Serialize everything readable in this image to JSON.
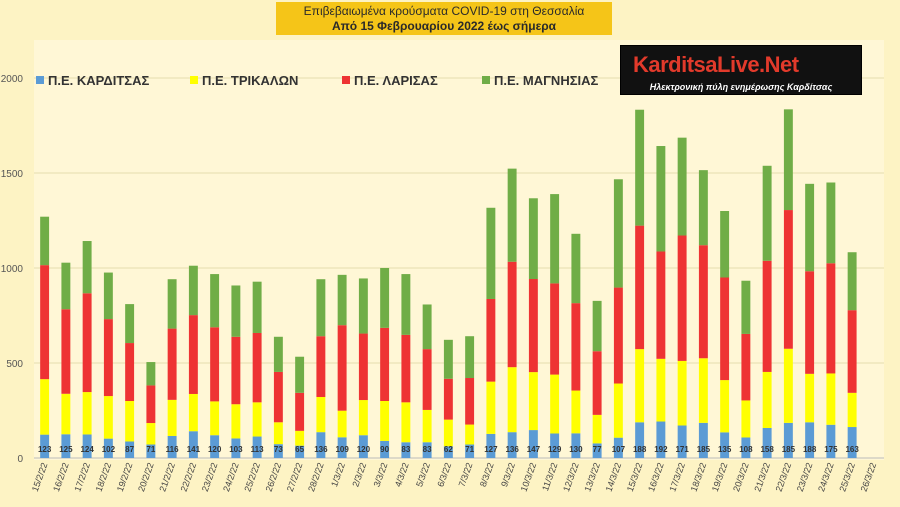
{
  "header": {
    "title": "Επιβεβαιωμένα κρούσματα COVID-19 στη Θεσσαλία",
    "subtitle": "Από 15 Φεβρουαρίου 2022 έως σήμερα"
  },
  "logo": {
    "name": "KarditsaLive.Net",
    "tagline": "Ηλεκτρονική πύλη ενημέρωσης Καρδίτσας"
  },
  "chart_data": {
    "type": "bar",
    "stacked": true,
    "ylim": [
      0,
      2000
    ],
    "yticks": [
      0,
      500,
      1000,
      1500,
      2000
    ],
    "legend_position": "top",
    "categories": [
      "15/2/22",
      "16/2/22",
      "17/2/22",
      "18/2/22",
      "19/2/22",
      "20/2/22",
      "21/2/22",
      "22/2/22",
      "23/2/22",
      "24/2/22",
      "25/2/22",
      "26/2/22",
      "27/2/22",
      "28/2/22",
      "1/3/22",
      "2/3/22",
      "3/3/22",
      "4/3/22",
      "5/3/22",
      "6/3/22",
      "7/3/22",
      "8/3/22",
      "9/3/22",
      "10/3/22",
      "11/3/22",
      "12/3/22",
      "13/3/22",
      "14/3/22",
      "15/3/22",
      "16/3/22",
      "17/3/22",
      "18/3/22",
      "19/3/22",
      "20/3/22",
      "21/3/22",
      "22/3/22",
      "23/3/22",
      "24/3/22",
      "25/3/22",
      "26/3/22"
    ],
    "series": [
      {
        "name": "Π.Ε. ΚΑΡΔΙΤΣΑΣ",
        "color": "#5b9bd5",
        "values": [
          123,
          125,
          124,
          102,
          87,
          71,
          116,
          141,
          120,
          103,
          113,
          73,
          65,
          136,
          109,
          120,
          90,
          83,
          83,
          62,
          71,
          127,
          136,
          147,
          129,
          130,
          77,
          107,
          188,
          192,
          171,
          185,
          135,
          108,
          158,
          185,
          188,
          175,
          163,
          null
        ]
      },
      {
        "name": "Π.Ε. ΤΡΙΚΑΛΩΝ",
        "color": "#ffff00",
        "values": [
          292,
          213,
          223,
          224,
          213,
          113,
          190,
          196,
          178,
          180,
          180,
          115,
          78,
          185,
          140,
          185,
          210,
          210,
          170,
          140,
          105,
          275,
          342,
          305,
          310,
          225,
          150,
          285,
          385,
          330,
          340,
          340,
          275,
          195,
          295,
          390,
          255,
          270,
          180,
          null
        ]
      },
      {
        "name": "Π.Ε. ΛΑΡΙΣΑΣ",
        "color": "#ee3333",
        "values": [
          600,
          445,
          520,
          405,
          305,
          198,
          375,
          415,
          390,
          355,
          365,
          265,
          200,
          320,
          450,
          350,
          385,
          355,
          320,
          215,
          245,
          435,
          555,
          490,
          480,
          460,
          335,
          505,
          650,
          565,
          660,
          595,
          540,
          350,
          585,
          730,
          540,
          580,
          435,
          null
        ]
      },
      {
        "name": "Π.Ε. ΜΑΓΝΗΣΙΑΣ",
        "color": "#70ad47",
        "values": [
          255,
          245,
          275,
          245,
          205,
          123,
          260,
          260,
          280,
          270,
          270,
          185,
          190,
          300,
          265,
          290,
          315,
          320,
          235,
          205,
          220,
          480,
          490,
          425,
          470,
          365,
          265,
          570,
          610,
          555,
          515,
          395,
          350,
          280,
          500,
          530,
          460,
          425,
          305,
          null
        ]
      }
    ],
    "data_labels_series": "Π.Ε. ΚΑΡΔΙΤΣΑΣ"
  }
}
